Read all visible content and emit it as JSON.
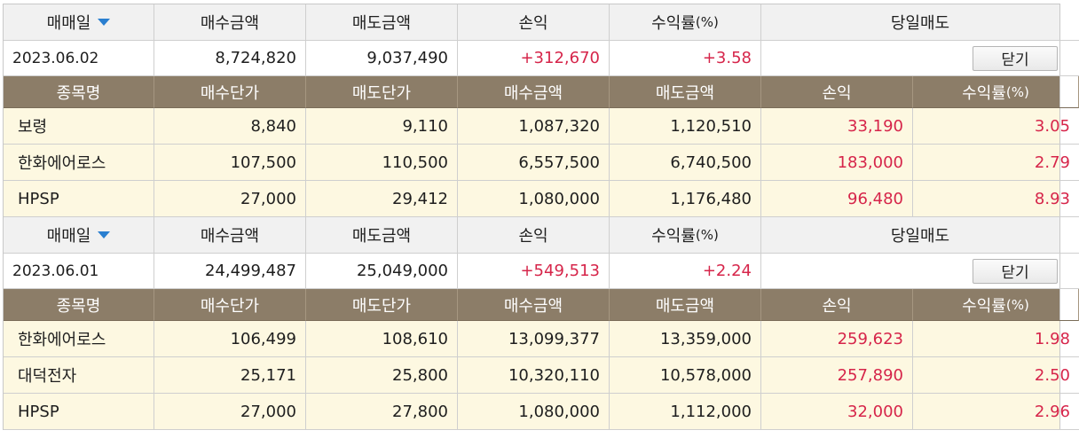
{
  "columns_header": {
    "date": "매매일",
    "buy_amount": "매수금액",
    "sell_amount": "매도금액",
    "profit": "손익",
    "return": "수익률",
    "return_unit": "(%)",
    "same_day_sell": "당일매도"
  },
  "detail_header": {
    "name": "종목명",
    "buy_price": "매수단가",
    "sell_price": "매도단가",
    "buy_amount": "매수금액",
    "sell_amount": "매도금액",
    "profit": "손익",
    "return": "수익률",
    "return_unit": "(%)"
  },
  "close_label": "닫기",
  "days": [
    {
      "date": "2023.06.02",
      "buy_amount": "8,724,820",
      "sell_amount": "9,037,490",
      "profit": "+312,670",
      "return": "+3.58",
      "stocks": [
        {
          "name": "보령",
          "buy_price": "8,840",
          "sell_price": "9,110",
          "buy_amount": "1,087,320",
          "sell_amount": "1,120,510",
          "profit": "33,190",
          "return": "3.05"
        },
        {
          "name": "한화에어로스",
          "buy_price": "107,500",
          "sell_price": "110,500",
          "buy_amount": "6,557,500",
          "sell_amount": "6,740,500",
          "profit": "183,000",
          "return": "2.79"
        },
        {
          "name": "HPSP",
          "buy_price": "27,000",
          "sell_price": "29,412",
          "buy_amount": "1,080,000",
          "sell_amount": "1,176,480",
          "profit": "96,480",
          "return": "8.93"
        }
      ]
    },
    {
      "date": "2023.06.01",
      "buy_amount": "24,499,487",
      "sell_amount": "25,049,000",
      "profit": "+549,513",
      "return": "+2.24",
      "stocks": [
        {
          "name": "한화에어로스",
          "buy_price": "106,499",
          "sell_price": "108,610",
          "buy_amount": "13,099,377",
          "sell_amount": "13,359,000",
          "profit": "259,623",
          "return": "1.98"
        },
        {
          "name": "대덕전자",
          "buy_price": "25,171",
          "sell_price": "25,800",
          "buy_amount": "10,320,110",
          "sell_amount": "10,578,000",
          "profit": "257,890",
          "return": "2.50"
        },
        {
          "name": "HPSP",
          "buy_price": "27,000",
          "sell_price": "27,800",
          "buy_amount": "1,080,000",
          "sell_amount": "1,112,000",
          "profit": "32,000",
          "return": "2.96"
        }
      ]
    }
  ],
  "colors": {
    "header_bg": "#f1f1f1",
    "detail_header_bg": "#8c7d68",
    "row_bg": "#fdf8e1",
    "profit_red": "#d6254a",
    "sort_arrow_blue": "#2a7fd0"
  },
  "icons": {
    "sort": "triangle-down-icon"
  }
}
